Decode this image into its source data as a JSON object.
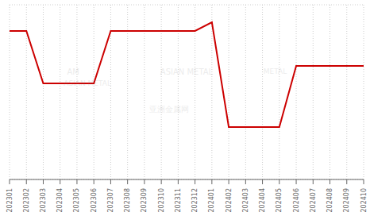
{
  "chart_data": {
    "type": "line",
    "categories": [
      "202301",
      "202302",
      "202303",
      "202304",
      "202305",
      "202306",
      "202307",
      "202308",
      "202309",
      "202310",
      "202311",
      "202312",
      "202401",
      "202402",
      "202403",
      "202404",
      "202405",
      "202406",
      "202407",
      "202408",
      "202409",
      "202410"
    ],
    "values": [
      17,
      17,
      11,
      11,
      11,
      11,
      17,
      17,
      17,
      17,
      17,
      17,
      18,
      6,
      6,
      6,
      6,
      13,
      13,
      13,
      13,
      13
    ],
    "color": "#cc0000",
    "ylim": [
      0,
      20
    ],
    "yticks": [
      0,
      2.857142857142857,
      5.714285714285714,
      8.571428571428571,
      11.428571428571429,
      14.285714285714286,
      17.142857142857142,
      20
    ],
    "grid": true,
    "tick_labels": "x",
    "annotations": [
      "AM",
      "ASIAN METAL",
      "ASIAN METAL",
      "METAL",
      "亚洲金属网"
    ]
  }
}
